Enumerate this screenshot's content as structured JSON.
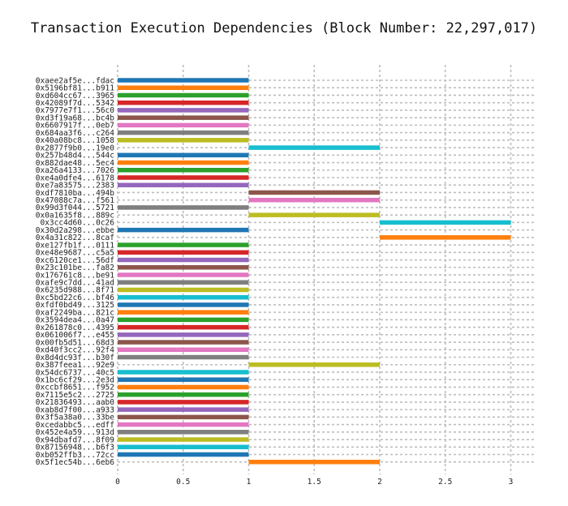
{
  "chart_data": {
    "type": "bar",
    "orientation": "horizontal-gantt",
    "title": "Transaction Execution Dependencies (Block Number: 22,297,017)",
    "xlabel": "",
    "ylabel": "",
    "xlim": [
      0,
      3.15
    ],
    "xticks": [
      "0",
      "0.5",
      "1",
      "1.5",
      "2",
      "2.5",
      "3"
    ],
    "grid": true,
    "palette": [
      "#1f77b4",
      "#ff7f0e",
      "#2ca02c",
      "#d62728",
      "#9467bd",
      "#8c564b",
      "#e377c2",
      "#7f7f7f",
      "#bcbd22",
      "#17becf"
    ],
    "transactions": [
      {
        "label": "0xaee2af5e...fdac",
        "start": 0,
        "end": 1
      },
      {
        "label": "0x5196bf81...b911",
        "start": 0,
        "end": 1
      },
      {
        "label": "0xd604cc67...3965",
        "start": 0,
        "end": 1
      },
      {
        "label": "0x42089f7d...5342",
        "start": 0,
        "end": 1
      },
      {
        "label": "0x7977e7f1...56c0",
        "start": 0,
        "end": 1
      },
      {
        "label": "0xd3f19a68...bc4b",
        "start": 0,
        "end": 1
      },
      {
        "label": "0x6607917f...0eb7",
        "start": 0,
        "end": 1
      },
      {
        "label": "0x684aa3f6...c264",
        "start": 0,
        "end": 1
      },
      {
        "label": "0x40a08bc8...1058",
        "start": 0,
        "end": 1
      },
      {
        "label": "0x2877f9b0...19e0",
        "start": 1,
        "end": 2
      },
      {
        "label": "0x257b48d4...544c",
        "start": 0,
        "end": 1
      },
      {
        "label": "0x882dae48...5ec4",
        "start": 0,
        "end": 1
      },
      {
        "label": "0xa26a4133...7026",
        "start": 0,
        "end": 1
      },
      {
        "label": "0xe4a0dfe4...6178",
        "start": 0,
        "end": 1
      },
      {
        "label": "0xe7a83575...2383",
        "start": 0,
        "end": 1
      },
      {
        "label": "0xdf7810ba...494b",
        "start": 1,
        "end": 2
      },
      {
        "label": "0x47088c7a...f561",
        "start": 1,
        "end": 2
      },
      {
        "label": "0x99d3f044...5721",
        "start": 0,
        "end": 1
      },
      {
        "label": "0x0a1635f8...889c",
        "start": 1,
        "end": 2
      },
      {
        "label": "0x3cc4d60...0c26",
        "start": 2,
        "end": 3
      },
      {
        "label": "0x30d2a298...ebbe",
        "start": 0,
        "end": 1
      },
      {
        "label": "0x4a31c822...8caf",
        "start": 2,
        "end": 3
      },
      {
        "label": "0xe127fb1f...0111",
        "start": 0,
        "end": 1
      },
      {
        "label": "0xe48e9687...c5a5",
        "start": 0,
        "end": 1
      },
      {
        "label": "0xc6120ce1...56df",
        "start": 0,
        "end": 1
      },
      {
        "label": "0x23c101be...fa82",
        "start": 0,
        "end": 1
      },
      {
        "label": "0x176761c8...be91",
        "start": 0,
        "end": 1
      },
      {
        "label": "0xafe9c7dd...41ad",
        "start": 0,
        "end": 1
      },
      {
        "label": "0x6235d988...8f71",
        "start": 0,
        "end": 1
      },
      {
        "label": "0xc5bd22c6...bf46",
        "start": 0,
        "end": 1
      },
      {
        "label": "0xfdf0bd49...3125",
        "start": 0,
        "end": 1
      },
      {
        "label": "0xaf2249ba...821c",
        "start": 0,
        "end": 1
      },
      {
        "label": "0x3594dea4...0a47",
        "start": 0,
        "end": 1
      },
      {
        "label": "0x261878c0...4395",
        "start": 0,
        "end": 1
      },
      {
        "label": "0x061006f7...e455",
        "start": 0,
        "end": 1
      },
      {
        "label": "0x00fb5d51...68d3",
        "start": 0,
        "end": 1
      },
      {
        "label": "0xd40f3cc2...92f4",
        "start": 0,
        "end": 1
      },
      {
        "label": "0x8d4dc93f...b30f",
        "start": 0,
        "end": 1
      },
      {
        "label": "0x387feea1...92e9",
        "start": 1,
        "end": 2
      },
      {
        "label": "0x54dc6737...40c5",
        "start": 0,
        "end": 1
      },
      {
        "label": "0x1bc6cf29...2e3d",
        "start": 0,
        "end": 1
      },
      {
        "label": "0xccbf8651...f952",
        "start": 0,
        "end": 1
      },
      {
        "label": "0x7115e5c2...2725",
        "start": 0,
        "end": 1
      },
      {
        "label": "0x21836493...aab0",
        "start": 0,
        "end": 1
      },
      {
        "label": "0xab8d7f00...a933",
        "start": 0,
        "end": 1
      },
      {
        "label": "0x3f5a38a0...33be",
        "start": 0,
        "end": 1
      },
      {
        "label": "0xcedabbc5...edff",
        "start": 0,
        "end": 1
      },
      {
        "label": "0x452e4a59...913d",
        "start": 0,
        "end": 1
      },
      {
        "label": "0x94dbafd7...8f09",
        "start": 0,
        "end": 1
      },
      {
        "label": "0x87156948...b6f3",
        "start": 0,
        "end": 1
      },
      {
        "label": "0xb052ffb3...72cc",
        "start": 0,
        "end": 1
      },
      {
        "label": "0x5f1ec54b...6eb6",
        "start": 1,
        "end": 2
      }
    ]
  }
}
